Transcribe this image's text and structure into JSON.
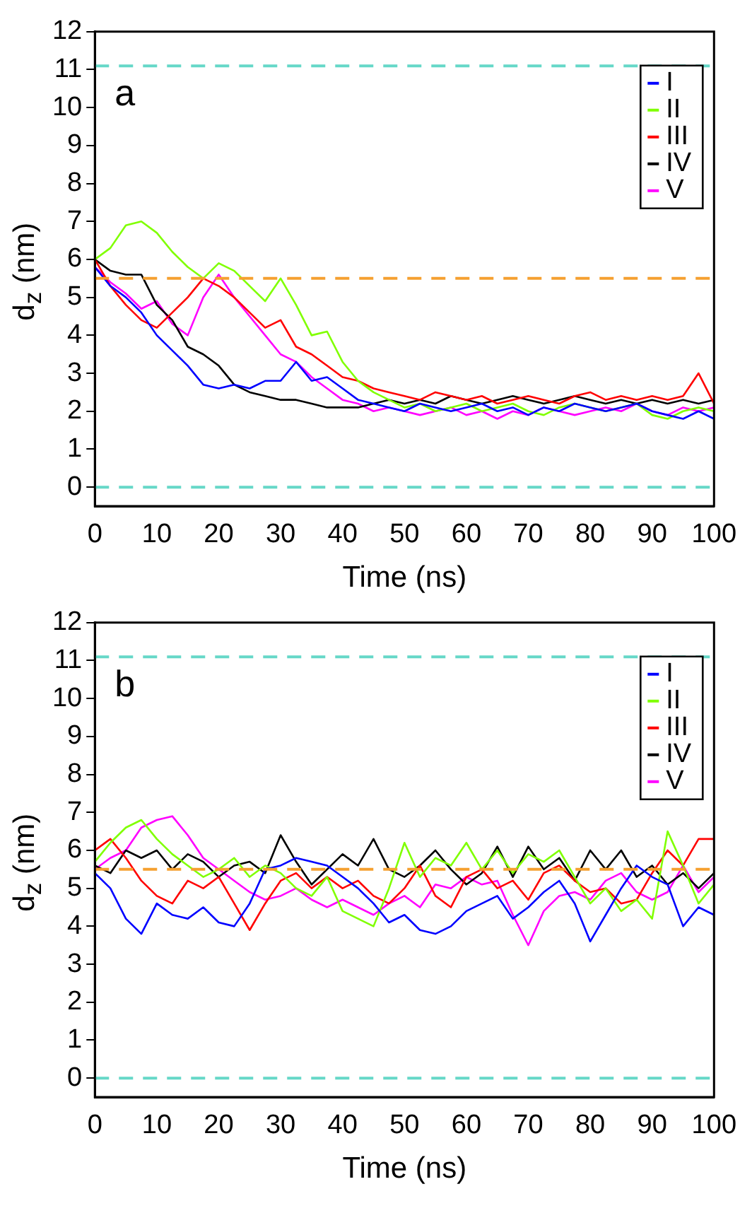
{
  "chart_data": [
    {
      "type": "line",
      "annotations": [
        "a"
      ],
      "xlabel": "Time (ns)",
      "ylabel": "d$_{z}$ (nm)",
      "x": [
        0,
        2.5,
        5,
        7.5,
        10,
        12.5,
        15,
        17.5,
        20,
        22.5,
        25,
        27.5,
        30,
        32.5,
        35,
        37.5,
        40,
        42.5,
        45,
        47.5,
        50,
        52.5,
        55,
        57.5,
        60,
        62.5,
        65,
        67.5,
        70,
        72.5,
        75,
        77.5,
        80,
        82.5,
        85,
        87.5,
        90,
        92.5,
        95,
        97.5,
        100
      ],
      "series": [
        {
          "name": "I",
          "color": "#0000ff",
          "values": [
            5.8,
            5.3,
            5.0,
            4.6,
            4.0,
            3.6,
            3.2,
            2.7,
            2.6,
            2.7,
            2.6,
            2.8,
            2.8,
            3.3,
            2.8,
            2.9,
            2.6,
            2.3,
            2.2,
            2.1,
            2.0,
            2.2,
            2.1,
            2.0,
            2.1,
            2.2,
            2.0,
            2.1,
            1.9,
            2.1,
            2.0,
            2.2,
            2.1,
            2.0,
            2.1,
            2.2,
            2.0,
            1.9,
            1.8,
            2.0,
            1.8
          ]
        },
        {
          "name": "II",
          "color": "#80ff00",
          "values": [
            6.0,
            6.3,
            6.9,
            7.0,
            6.7,
            6.2,
            5.8,
            5.5,
            5.9,
            5.7,
            5.3,
            4.9,
            5.5,
            4.8,
            4.0,
            4.1,
            3.3,
            2.8,
            2.5,
            2.3,
            2.1,
            2.2,
            2.0,
            2.1,
            2.2,
            2.0,
            2.1,
            2.2,
            2.0,
            1.9,
            2.1,
            2.2,
            2.1,
            2.0,
            2.1,
            2.2,
            1.9,
            1.8,
            2.0,
            2.1,
            2.0
          ]
        },
        {
          "name": "III",
          "color": "#ff0000",
          "values": [
            6.0,
            5.3,
            4.8,
            4.4,
            4.2,
            4.6,
            5.0,
            5.5,
            5.3,
            5.0,
            4.6,
            4.2,
            4.4,
            3.7,
            3.5,
            3.2,
            2.9,
            2.8,
            2.6,
            2.5,
            2.4,
            2.3,
            2.5,
            2.4,
            2.3,
            2.4,
            2.2,
            2.3,
            2.4,
            2.3,
            2.2,
            2.4,
            2.5,
            2.3,
            2.4,
            2.3,
            2.4,
            2.3,
            2.4,
            3.0,
            2.2
          ]
        },
        {
          "name": "IV",
          "color": "#000000",
          "values": [
            6.0,
            5.7,
            5.6,
            5.6,
            4.8,
            4.4,
            3.7,
            3.5,
            3.2,
            2.7,
            2.5,
            2.4,
            2.3,
            2.3,
            2.2,
            2.1,
            2.1,
            2.1,
            2.2,
            2.3,
            2.2,
            2.3,
            2.2,
            2.4,
            2.3,
            2.2,
            2.3,
            2.4,
            2.3,
            2.2,
            2.3,
            2.4,
            2.3,
            2.2,
            2.3,
            2.2,
            2.3,
            2.2,
            2.3,
            2.2,
            2.3
          ]
        },
        {
          "name": "V",
          "color": "#ff00ff",
          "values": [
            5.8,
            5.4,
            5.1,
            4.7,
            4.9,
            4.3,
            4.0,
            5.0,
            5.6,
            5.0,
            4.5,
            4.0,
            3.5,
            3.3,
            2.9,
            2.6,
            2.3,
            2.2,
            2.0,
            2.1,
            2.0,
            1.9,
            2.0,
            2.1,
            1.9,
            2.0,
            1.8,
            2.0,
            1.9,
            2.1,
            2.0,
            1.9,
            2.0,
            2.1,
            2.0,
            2.2,
            2.0,
            1.9,
            2.1,
            2.0,
            2.1
          ]
        }
      ],
      "xlim": [
        0,
        100
      ],
      "xticks": [
        0,
        10,
        20,
        30,
        40,
        50,
        60,
        70,
        80,
        90,
        100
      ],
      "ylim": [
        -0.5,
        12
      ],
      "yticks": [
        0,
        1,
        2,
        3,
        4,
        5,
        6,
        7,
        8,
        9,
        10,
        11,
        12
      ],
      "ref_lines": [
        {
          "axis": "y",
          "value": 0,
          "color": "#66d8c8",
          "line_style": "dashed"
        },
        {
          "axis": "y",
          "value": 11.1,
          "color": "#66d8c8",
          "line_style": "dashed"
        },
        {
          "axis": "y",
          "value": 5.5,
          "color": "#f5a030",
          "line_style": "dashed"
        }
      ],
      "legend": "top right",
      "grid": false,
      "marker": "none",
      "line_style": "solid"
    },
    {
      "type": "line",
      "annotations": [
        "b"
      ],
      "xlabel": "Time (ns)",
      "ylabel": "d$_{z}$ (nm)",
      "x": [
        0,
        2.5,
        5,
        7.5,
        10,
        12.5,
        15,
        17.5,
        20,
        22.5,
        25,
        27.5,
        30,
        32.5,
        35,
        37.5,
        40,
        42.5,
        45,
        47.5,
        50,
        52.5,
        55,
        57.5,
        60,
        62.5,
        65,
        67.5,
        70,
        72.5,
        75,
        77.5,
        80,
        82.5,
        85,
        87.5,
        90,
        92.5,
        95,
        97.5,
        100
      ],
      "series": [
        {
          "name": "I",
          "color": "#0000ff",
          "values": [
            5.4,
            5.0,
            4.2,
            3.8,
            4.6,
            4.3,
            4.2,
            4.5,
            4.1,
            4.0,
            4.6,
            5.5,
            5.6,
            5.8,
            5.7,
            5.6,
            5.3,
            5.0,
            4.6,
            4.1,
            4.3,
            3.9,
            3.8,
            4.0,
            4.4,
            4.6,
            4.8,
            4.2,
            4.5,
            4.9,
            5.2,
            4.6,
            3.6,
            4.3,
            5.0,
            5.6,
            5.3,
            5.1,
            4.0,
            4.5,
            4.3
          ]
        },
        {
          "name": "II",
          "color": "#80ff00",
          "values": [
            5.7,
            6.2,
            6.6,
            6.8,
            6.3,
            5.9,
            5.6,
            5.3,
            5.5,
            5.8,
            5.3,
            5.6,
            5.4,
            5.0,
            4.8,
            5.3,
            4.4,
            4.2,
            4.0,
            5.0,
            6.2,
            5.3,
            5.8,
            5.6,
            6.2,
            5.5,
            6.0,
            5.4,
            5.9,
            5.7,
            6.0,
            5.3,
            4.6,
            5.0,
            4.4,
            4.7,
            4.2,
            6.5,
            5.6,
            4.6,
            5.1
          ]
        },
        {
          "name": "III",
          "color": "#ff0000",
          "values": [
            6.0,
            6.3,
            5.8,
            5.2,
            4.8,
            4.6,
            5.2,
            5.0,
            5.3,
            4.6,
            3.9,
            4.6,
            5.2,
            5.4,
            5.0,
            5.3,
            5.0,
            5.2,
            4.8,
            4.6,
            5.0,
            5.6,
            4.8,
            4.5,
            5.3,
            5.5,
            5.0,
            5.2,
            4.7,
            5.4,
            5.6,
            5.2,
            4.9,
            5.0,
            4.6,
            4.7,
            5.4,
            6.0,
            5.6,
            6.3,
            6.3
          ]
        },
        {
          "name": "IV",
          "color": "#000000",
          "values": [
            5.6,
            5.4,
            6.0,
            5.8,
            6.0,
            5.5,
            5.9,
            5.7,
            5.3,
            5.6,
            5.7,
            5.4,
            6.4,
            5.7,
            5.1,
            5.5,
            5.9,
            5.6,
            6.3,
            5.5,
            5.3,
            5.6,
            6.0,
            5.5,
            5.1,
            5.4,
            6.1,
            5.3,
            6.1,
            5.5,
            5.8,
            5.2,
            6.0,
            5.5,
            6.0,
            5.3,
            5.6,
            5.1,
            5.4,
            5.0,
            5.4
          ]
        },
        {
          "name": "V",
          "color": "#ff00ff",
          "values": [
            5.5,
            5.8,
            6.0,
            6.6,
            6.8,
            6.9,
            6.4,
            5.8,
            5.5,
            5.2,
            4.9,
            4.7,
            4.8,
            5.0,
            4.7,
            4.5,
            4.7,
            4.5,
            4.3,
            4.6,
            4.8,
            4.5,
            5.1,
            5.0,
            5.3,
            5.1,
            5.2,
            4.3,
            3.5,
            4.4,
            4.8,
            4.9,
            4.7,
            5.2,
            5.4,
            4.9,
            4.7,
            4.9,
            5.6,
            4.9,
            5.3
          ]
        }
      ],
      "xlim": [
        0,
        100
      ],
      "xticks": [
        0,
        10,
        20,
        30,
        40,
        50,
        60,
        70,
        80,
        90,
        100
      ],
      "ylim": [
        -0.5,
        12
      ],
      "yticks": [
        0,
        1,
        2,
        3,
        4,
        5,
        6,
        7,
        8,
        9,
        10,
        11,
        12
      ],
      "ref_lines": [
        {
          "axis": "y",
          "value": 0,
          "color": "#66d8c8",
          "line_style": "dashed"
        },
        {
          "axis": "y",
          "value": 11.1,
          "color": "#66d8c8",
          "line_style": "dashed"
        },
        {
          "axis": "y",
          "value": 5.5,
          "color": "#f5a030",
          "line_style": "dashed"
        }
      ],
      "legend": "top right",
      "grid": false,
      "marker": "none",
      "line_style": "solid"
    }
  ]
}
